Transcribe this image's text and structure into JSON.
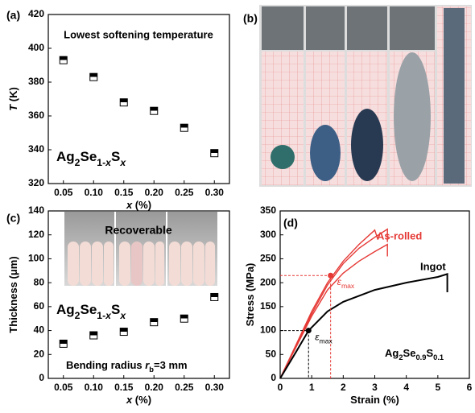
{
  "chart_data": [
    {
      "type": "scatter",
      "panel": "(a)",
      "title": "Lowest softening temperature",
      "formula": [
        {
          "text": "Ag"
        },
        {
          "text": "2",
          "sub": true
        },
        {
          "text": "Se"
        },
        {
          "text": "1-",
          "sub": true
        },
        {
          "text": "x",
          "sub": true,
          "italic": true
        },
        {
          "text": "S"
        },
        {
          "text": "x",
          "sub": true,
          "italic": true
        }
      ],
      "x_label": [
        {
          "text": "x",
          "italic": true
        },
        {
          "text": " (%)"
        }
      ],
      "y_label": [
        {
          "text": "T",
          "italic": true
        },
        {
          "text": " (K)"
        }
      ],
      "x": [
        0.05,
        0.1,
        0.15,
        0.2,
        0.25,
        0.3
      ],
      "values": [
        393,
        383,
        368,
        363,
        353,
        338
      ],
      "xlim": [
        0.025,
        0.325
      ],
      "xticks": [
        0.05,
        {
          "value": 0.1,
          "label": "0.10"
        },
        0.15,
        {
          "value": 0.2,
          "label": "0.20"
        },
        0.25,
        {
          "value": 0.3,
          "label": "0.30"
        }
      ],
      "ylim": [
        320,
        420
      ],
      "yticks": [
        320,
        340,
        360,
        380,
        400,
        420
      ],
      "color": "#000000"
    },
    {
      "type": "scatter",
      "panel": "(c)",
      "annotation": "Recoverable",
      "formula": [
        {
          "text": "Ag"
        },
        {
          "text": "2",
          "sub": true
        },
        {
          "text": "Se"
        },
        {
          "text": "1-",
          "sub": true
        },
        {
          "text": "x",
          "sub": true,
          "italic": true
        },
        {
          "text": "S"
        },
        {
          "text": "x",
          "sub": true,
          "italic": true
        }
      ],
      "note": [
        {
          "text": "Bending radius "
        },
        {
          "text": "r",
          "italic": true
        },
        {
          "text": "b",
          "sub": true
        },
        {
          "text": "=3 mm"
        }
      ],
      "x_label": [
        {
          "text": "x",
          "italic": true
        },
        {
          "text": " (%)"
        }
      ],
      "y_label": [
        {
          "text": "Thickness (μm)"
        }
      ],
      "x": [
        0.05,
        0.1,
        0.15,
        0.2,
        0.25,
        0.3
      ],
      "values": [
        29,
        36,
        39,
        47,
        50,
        68
      ],
      "xlim": [
        0.025,
        0.325
      ],
      "xticks": [
        0.05,
        {
          "value": 0.1,
          "label": "0.10"
        },
        0.15,
        {
          "value": 0.2,
          "label": "0.20"
        },
        0.25,
        {
          "value": 0.3,
          "label": "0.30"
        }
      ],
      "ylim": [
        0,
        140
      ],
      "yticks": [
        0,
        20,
        40,
        60,
        80,
        100,
        120,
        140
      ],
      "color": "#000000"
    },
    {
      "type": "line",
      "panel": "(d)",
      "formula": [
        {
          "text": "Ag"
        },
        {
          "text": "2",
          "sub": true
        },
        {
          "text": "Se"
        },
        {
          "text": "0.9",
          "sub": true
        },
        {
          "text": "S"
        },
        {
          "text": "0.1",
          "sub": true
        }
      ],
      "x_label": [
        {
          "text": "Strain (%)"
        }
      ],
      "y_label": [
        {
          "text": "Stress (MPa)"
        }
      ],
      "xlim": [
        0,
        6
      ],
      "xticks": [
        0,
        1,
        2,
        3,
        4,
        5,
        6
      ],
      "ylim": [
        0,
        350
      ],
      "yticks": [
        0,
        50,
        100,
        150,
        200,
        250,
        300,
        350
      ],
      "series": [
        {
          "name": "As-rolled",
          "color": "#e53935",
          "x": [
            0,
            0.5,
            1,
            1.5,
            2,
            2.5,
            3,
            3.4,
            3.4
          ],
          "values": [
            0,
            68,
            135,
            195,
            240,
            272,
            295,
            312,
            285
          ]
        },
        {
          "color": "#e53935",
          "x": [
            0,
            0.5,
            1,
            1.5,
            2,
            2.5,
            3,
            3.1
          ],
          "values": [
            0,
            70,
            140,
            200,
            245,
            280,
            310,
            290
          ]
        },
        {
          "color": "#e53935",
          "x": [
            0,
            0.5,
            1,
            1.5,
            2,
            2.5,
            3,
            3.4,
            3.4
          ],
          "values": [
            0,
            65,
            130,
            185,
            220,
            245,
            265,
            280,
            255
          ]
        },
        {
          "name": "Ingot",
          "color": "#000000",
          "x": [
            0,
            0.5,
            0.9,
            1.5,
            2,
            3,
            4,
            5,
            5.3,
            5.3
          ],
          "values": [
            0,
            55,
            100,
            140,
            160,
            185,
            200,
            212,
            218,
            180
          ]
        }
      ],
      "points": [
        {
          "x": 1.6,
          "y": 215,
          "color": "#e53935",
          "label": [
            {
              "text": "ε",
              "italic": true
            },
            {
              "text": "max",
              "sub": true
            }
          ]
        },
        {
          "x": 0.9,
          "y": 100,
          "color": "#000000",
          "label": [
            {
              "text": "ε",
              "italic": true
            },
            {
              "text": "max",
              "sub": true
            }
          ]
        }
      ]
    }
  ],
  "photo_panel": {
    "label": "(b)"
  }
}
